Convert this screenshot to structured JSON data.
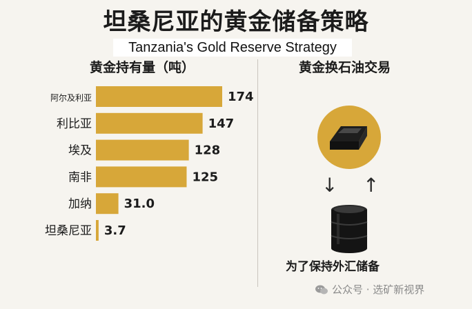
{
  "title": "坦桑尼亚的黄金储备策略",
  "subtitle": "Tanzania's Gold Reserve Strategy",
  "chart_heading": "黄金持有量（吨）",
  "side_heading": "黄金换石油交易",
  "barrel_caption": "为了保持外汇储备",
  "footer_text": "公众号 · 选矿新视界",
  "icons": {
    "gold_bar": "gold-bar-icon",
    "oil_barrel": "oil-barrel-icon",
    "arrow_down": "arrow-down-icon",
    "arrow_up": "arrow-up-icon",
    "wechat": "wechat-icon"
  },
  "colors": {
    "bar": "#d7a739",
    "background": "#f6f4ef"
  },
  "chart_data": {
    "type": "bar",
    "orientation": "horizontal",
    "categories": [
      "阿尔及利亚",
      "利比亚",
      "埃及",
      "南非",
      "加纳",
      "坦桑尼亚"
    ],
    "values": [
      174,
      147,
      128,
      125,
      31.0,
      3.7
    ],
    "value_labels": [
      "174",
      "147",
      "128",
      "125",
      "31.0",
      "3.7"
    ],
    "title": "黄金持有量（吨）",
    "xlim": [
      0,
      174
    ],
    "grid": false,
    "legend": "none"
  }
}
